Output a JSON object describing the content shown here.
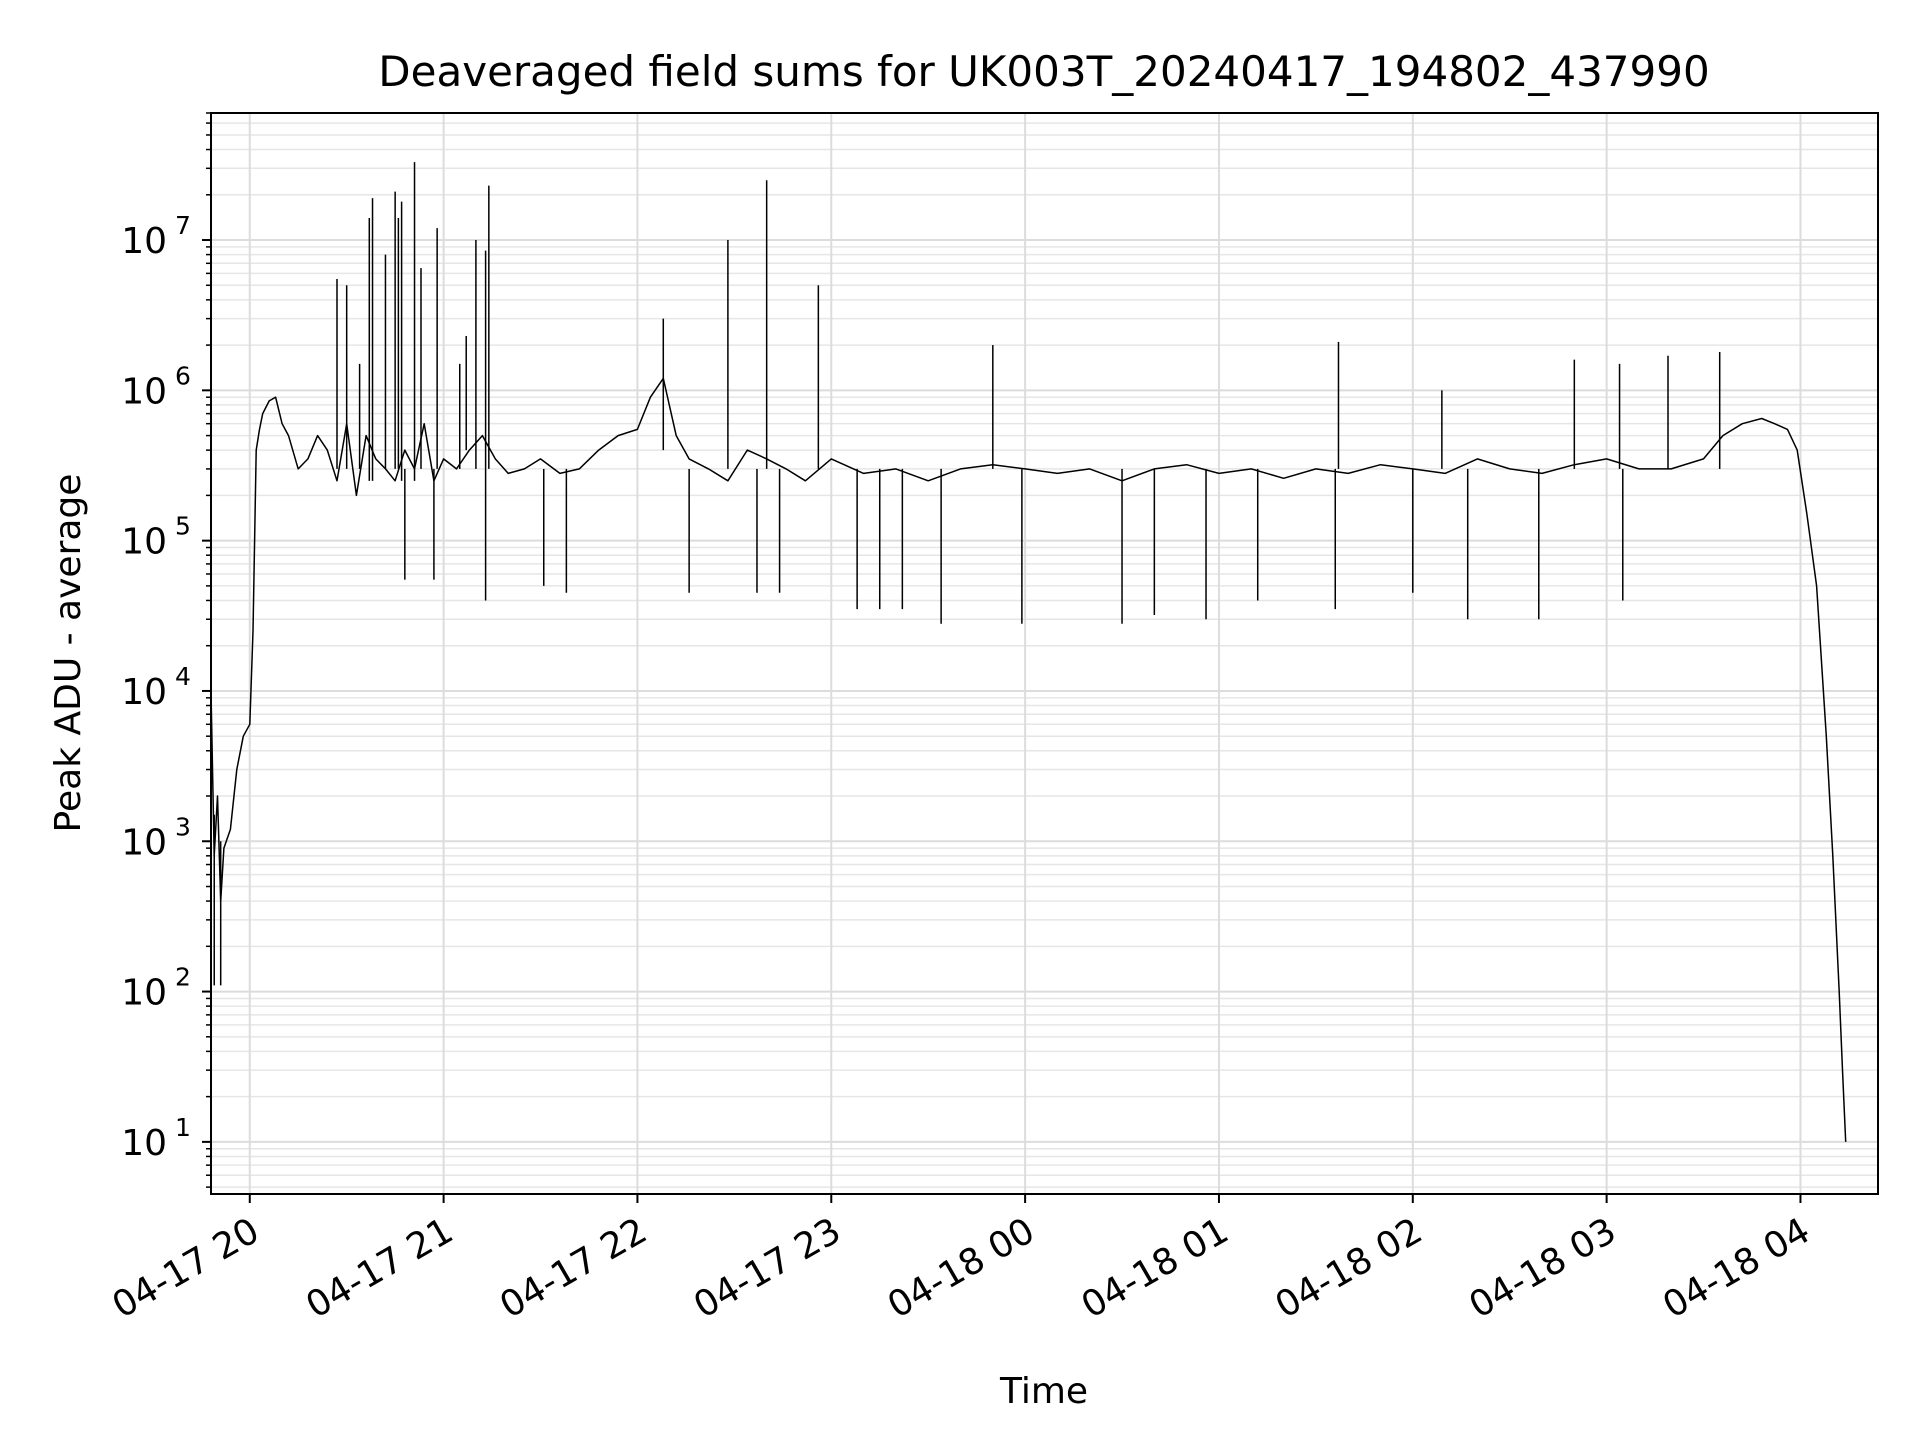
{
  "chart_data": {
    "type": "line",
    "title": "Deaveraged field sums for UK003T_20240417_194802_437990",
    "xlabel": "Time",
    "ylabel": "Peak ADU - average",
    "xlim": [
      "2024-04-17 19:48",
      "2024-04-18 04:24"
    ],
    "ylim": [
      4.5,
      70000000
    ],
    "yscale": "log",
    "grid": true,
    "x_ticks": [
      {
        "t": "2024-04-17 20:00",
        "label": "04-17 20"
      },
      {
        "t": "2024-04-17 21:00",
        "label": "04-17 21"
      },
      {
        "t": "2024-04-17 22:00",
        "label": "04-17 22"
      },
      {
        "t": "2024-04-17 23:00",
        "label": "04-17 23"
      },
      {
        "t": "2024-04-18 00:00",
        "label": "04-18 00"
      },
      {
        "t": "2024-04-18 01:00",
        "label": "04-18 01"
      },
      {
        "t": "2024-04-18 02:00",
        "label": "04-18 02"
      },
      {
        "t": "2024-04-18 03:00",
        "label": "04-18 03"
      },
      {
        "t": "2024-04-18 04:00",
        "label": "04-18 04"
      }
    ],
    "y_ticks": [
      {
        "value": 10,
        "base": "10",
        "exp": "1"
      },
      {
        "value": 100,
        "base": "10",
        "exp": "2"
      },
      {
        "value": 1000,
        "base": "10",
        "exp": "3"
      },
      {
        "value": 10000,
        "base": "10",
        "exp": "4"
      },
      {
        "value": 100000,
        "base": "10",
        "exp": "5"
      },
      {
        "value": 1000000,
        "base": "10",
        "exp": "6"
      },
      {
        "value": 10000000,
        "base": "10",
        "exp": "7"
      }
    ],
    "series": [
      {
        "color": "#000000",
        "x": [
          "2024-04-17 19:48",
          "2024-04-17 19:49",
          "2024-04-17 19:50",
          "2024-04-17 19:51",
          "2024-04-17 19:52",
          "2024-04-17 19:54",
          "2024-04-17 19:56",
          "2024-04-17 19:58",
          "2024-04-17 20:00",
          "2024-04-17 20:01",
          "2024-04-17 20:02",
          "2024-04-17 20:03",
          "2024-04-17 20:04",
          "2024-04-17 20:06",
          "2024-04-17 20:08",
          "2024-04-17 20:10",
          "2024-04-17 20:12",
          "2024-04-17 20:15",
          "2024-04-17 20:18",
          "2024-04-17 20:21",
          "2024-04-17 20:24",
          "2024-04-17 20:27",
          "2024-04-17 20:30",
          "2024-04-17 20:33",
          "2024-04-17 20:36",
          "2024-04-17 20:39",
          "2024-04-17 20:42",
          "2024-04-17 20:45",
          "2024-04-17 20:48",
          "2024-04-17 20:51",
          "2024-04-17 20:54",
          "2024-04-17 20:57",
          "2024-04-17 21:00",
          "2024-04-17 21:04",
          "2024-04-17 21:08",
          "2024-04-17 21:12",
          "2024-04-17 21:16",
          "2024-04-17 21:20",
          "2024-04-17 21:25",
          "2024-04-17 21:30",
          "2024-04-17 21:36",
          "2024-04-17 21:42",
          "2024-04-17 21:48",
          "2024-04-17 21:54",
          "2024-04-17 22:00",
          "2024-04-17 22:04",
          "2024-04-17 22:08",
          "2024-04-17 22:12",
          "2024-04-17 22:16",
          "2024-04-17 22:22",
          "2024-04-17 22:28",
          "2024-04-17 22:34",
          "2024-04-17 22:40",
          "2024-04-17 22:46",
          "2024-04-17 22:52",
          "2024-04-17 23:00",
          "2024-04-17 23:10",
          "2024-04-17 23:20",
          "2024-04-17 23:30",
          "2024-04-17 23:40",
          "2024-04-17 23:50",
          "2024-04-18 00:00",
          "2024-04-18 00:10",
          "2024-04-18 00:20",
          "2024-04-18 00:30",
          "2024-04-18 00:40",
          "2024-04-18 00:50",
          "2024-04-18 01:00",
          "2024-04-18 01:10",
          "2024-04-18 01:20",
          "2024-04-18 01:30",
          "2024-04-18 01:40",
          "2024-04-18 01:50",
          "2024-04-18 02:00",
          "2024-04-18 02:10",
          "2024-04-18 02:20",
          "2024-04-18 02:30",
          "2024-04-18 02:40",
          "2024-04-18 02:50",
          "2024-04-18 03:00",
          "2024-04-18 03:10",
          "2024-04-18 03:20",
          "2024-04-18 03:30",
          "2024-04-18 03:36",
          "2024-04-18 03:42",
          "2024-04-18 03:48",
          "2024-04-18 03:52",
          "2024-04-18 03:56",
          "2024-04-18 03:59",
          "2024-04-18 04:02",
          "2024-04-18 04:05",
          "2024-04-18 04:08",
          "2024-04-18 04:10",
          "2024-04-18 04:12",
          "2024-04-18 04:13",
          "2024-04-18 04:14"
        ],
        "y": [
          10000,
          800,
          2000,
          400,
          900,
          1200,
          3000,
          5000,
          6000,
          25000,
          400000,
          550000,
          700000,
          850000,
          900000,
          600000,
          500000,
          300000,
          350000,
          500000,
          400000,
          250000,
          600000,
          200000,
          500000,
          350000,
          300000,
          250000,
          400000,
          300000,
          600000,
          250000,
          350000,
          300000,
          400000,
          500000,
          350000,
          280000,
          300000,
          350000,
          280000,
          300000,
          400000,
          500000,
          550000,
          900000,
          1200000,
          500000,
          350000,
          300000,
          250000,
          400000,
          350000,
          300000,
          250000,
          350000,
          280000,
          300000,
          250000,
          300000,
          320000,
          300000,
          280000,
          300000,
          250000,
          300000,
          320000,
          280000,
          300000,
          260000,
          300000,
          280000,
          320000,
          300000,
          280000,
          350000,
          300000,
          280000,
          320000,
          350000,
          300000,
          300000,
          350000,
          500000,
          600000,
          650000,
          600000,
          550000,
          400000,
          150000,
          50000,
          5000,
          800,
          100,
          30,
          10
        ]
      }
    ],
    "spikes": [
      {
        "x": "2024-04-17 20:27",
        "low": 300000,
        "high": 5500000
      },
      {
        "x": "2024-04-17 20:30",
        "low": 300000,
        "high": 5000000
      },
      {
        "x": "2024-04-17 20:34",
        "low": 300000,
        "high": 1500000
      },
      {
        "x": "2024-04-17 20:37",
        "low": 250000,
        "high": 14000000
      },
      {
        "x": "2024-04-17 20:38",
        "low": 250000,
        "high": 19000000
      },
      {
        "x": "2024-04-17 20:42",
        "low": 300000,
        "high": 8000000
      },
      {
        "x": "2024-04-17 20:45",
        "low": 300000,
        "high": 21000000
      },
      {
        "x": "2024-04-17 20:46",
        "low": 300000,
        "high": 14000000
      },
      {
        "x": "2024-04-17 20:47",
        "low": 250000,
        "high": 18000000
      },
      {
        "x": "2024-04-17 20:51",
        "low": 250000,
        "high": 33000000
      },
      {
        "x": "2024-04-17 20:53",
        "low": 300000,
        "high": 6500000
      },
      {
        "x": "2024-04-17 20:58",
        "low": 300000,
        "high": 12000000
      },
      {
        "x": "2024-04-17 21:05",
        "low": 300000,
        "high": 1500000
      },
      {
        "x": "2024-04-17 21:07",
        "low": 400000,
        "high": 2300000
      },
      {
        "x": "2024-04-17 21:10",
        "low": 300000,
        "high": 10000000
      },
      {
        "x": "2024-04-17 21:13",
        "low": 300000,
        "high": 8500000
      },
      {
        "x": "2024-04-17 21:14",
        "low": 300000,
        "high": 23000000
      },
      {
        "x": "2024-04-17 22:08",
        "low": 400000,
        "high": 3000000
      },
      {
        "x": "2024-04-17 22:28",
        "low": 300000,
        "high": 10000000
      },
      {
        "x": "2024-04-17 22:40",
        "low": 300000,
        "high": 25000000
      },
      {
        "x": "2024-04-17 22:56",
        "low": 300000,
        "high": 5000000
      },
      {
        "x": "2024-04-17 23:50",
        "low": 300000,
        "high": 2000000
      },
      {
        "x": "2024-04-18 01:37",
        "low": 300000,
        "high": 2100000
      },
      {
        "x": "2024-04-18 02:09",
        "low": 300000,
        "high": 1000000
      },
      {
        "x": "2024-04-18 02:50",
        "low": 300000,
        "high": 1600000
      },
      {
        "x": "2024-04-18 03:04",
        "low": 300000,
        "high": 1500000
      },
      {
        "x": "2024-04-18 03:19",
        "low": 300000,
        "high": 1700000
      },
      {
        "x": "2024-04-18 03:35",
        "low": 300000,
        "high": 1800000
      }
    ],
    "dips": [
      {
        "x": "2024-04-17 19:49",
        "high": 1500,
        "low": 110
      },
      {
        "x": "2024-04-17 19:51",
        "high": 1000,
        "low": 110
      },
      {
        "x": "2024-04-17 20:48",
        "high": 300000,
        "low": 55000
      },
      {
        "x": "2024-04-17 20:57",
        "high": 300000,
        "low": 55000
      },
      {
        "x": "2024-04-17 21:13",
        "high": 300000,
        "low": 40000
      },
      {
        "x": "2024-04-17 21:31",
        "high": 300000,
        "low": 50000
      },
      {
        "x": "2024-04-17 21:38",
        "high": 300000,
        "low": 45000
      },
      {
        "x": "2024-04-17 22:16",
        "high": 300000,
        "low": 45000
      },
      {
        "x": "2024-04-17 22:37",
        "high": 300000,
        "low": 45000
      },
      {
        "x": "2024-04-17 22:44",
        "high": 300000,
        "low": 45000
      },
      {
        "x": "2024-04-17 23:08",
        "high": 300000,
        "low": 35000
      },
      {
        "x": "2024-04-17 23:15",
        "high": 300000,
        "low": 35000
      },
      {
        "x": "2024-04-17 23:22",
        "high": 300000,
        "low": 35000
      },
      {
        "x": "2024-04-17 23:34",
        "high": 300000,
        "low": 28000
      },
      {
        "x": "2024-04-17 23:59",
        "high": 300000,
        "low": 28000
      },
      {
        "x": "2024-04-18 00:30",
        "high": 300000,
        "low": 28000
      },
      {
        "x": "2024-04-18 00:40",
        "high": 300000,
        "low": 32000
      },
      {
        "x": "2024-04-18 00:56",
        "high": 300000,
        "low": 30000
      },
      {
        "x": "2024-04-18 01:12",
        "high": 300000,
        "low": 40000
      },
      {
        "x": "2024-04-18 01:36",
        "high": 300000,
        "low": 35000
      },
      {
        "x": "2024-04-18 02:00",
        "high": 300000,
        "low": 45000
      },
      {
        "x": "2024-04-18 02:17",
        "high": 300000,
        "low": 30000
      },
      {
        "x": "2024-04-18 02:39",
        "high": 300000,
        "low": 30000
      },
      {
        "x": "2024-04-18 03:05",
        "high": 300000,
        "low": 40000
      }
    ]
  }
}
